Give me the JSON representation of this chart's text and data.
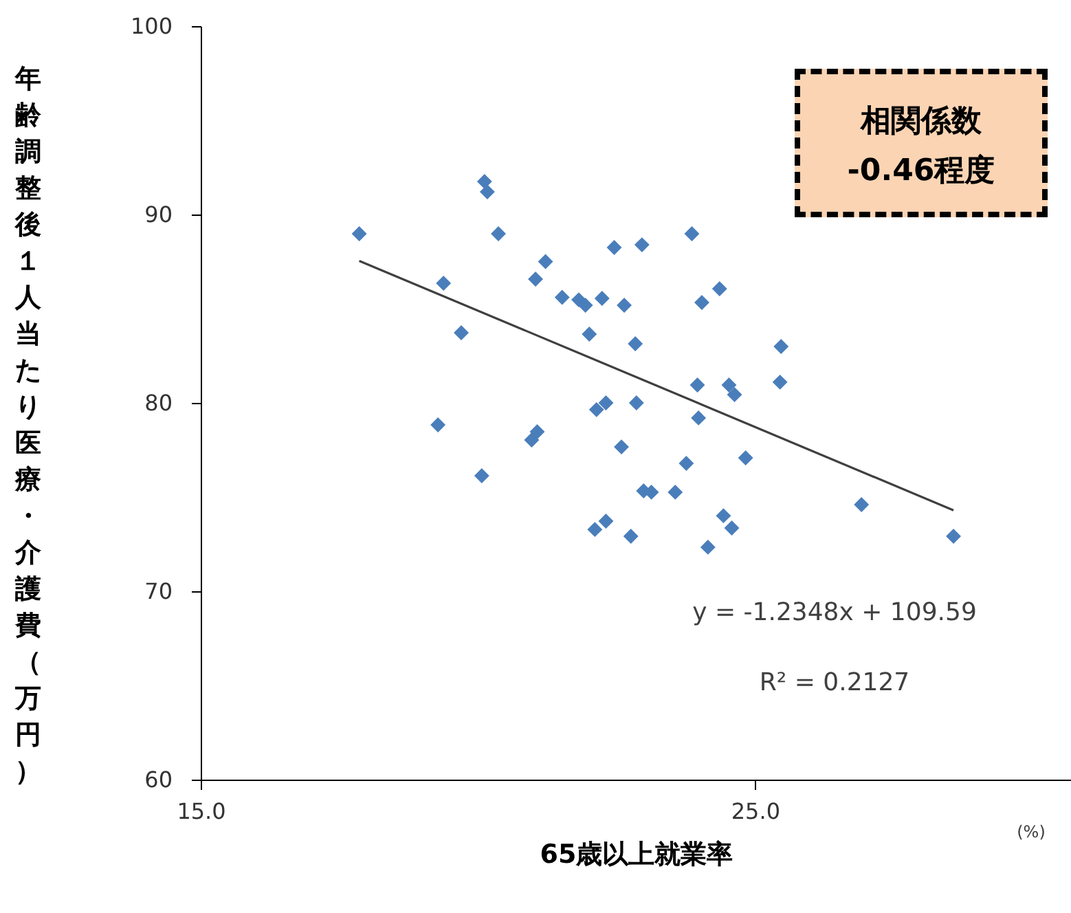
{
  "chart_data": {
    "type": "scatter",
    "xlabel": "65歳以上就業率",
    "ylabel": "年齢調整後１人当たり医療・介護費（万円）",
    "xlim": [
      15,
      30.7
    ],
    "xticks": [
      {
        "value": 15,
        "label": "15.0"
      },
      {
        "value": 25,
        "label": "25.0"
      }
    ],
    "ylim": [
      60,
      100
    ],
    "yticks": [
      60,
      70,
      80,
      90,
      100
    ],
    "annotations": [
      "相関係数\n-0.46程度",
      "y = -1.2348x + 109.59",
      "R² = 0.2127",
      "(%)"
    ],
    "series": [
      {
        "marker": "diamond",
        "color": "#4a7ebb",
        "x": [
          17.86,
          20.12,
          20.17,
          20.37,
          19.38,
          21.22,
          21.04,
          19.7,
          19.28,
          20.07,
          20.97,
          21.07,
          21.52,
          21.82,
          21.94,
          22.24,
          22.01,
          22.46,
          22.96,
          22.64,
          22.84,
          23.86,
          24.04,
          24.36,
          22.14,
          22.31,
          22.86,
          22.59,
          23.96,
          24.53,
          24.63,
          23.98,
          25.47,
          25.45,
          23.76,
          24.83,
          22.99,
          23.13,
          23.56,
          22.11,
          22.31,
          22.76,
          24.43,
          24.58,
          24.15,
          26.92,
          28.58
        ],
        "values": [
          88.98,
          91.75,
          91.2,
          88.98,
          86.35,
          87.5,
          86.57,
          83.72,
          78.83,
          76.13,
          78.03,
          78.47,
          85.6,
          85.47,
          85.18,
          85.55,
          83.65,
          88.25,
          88.39,
          85.18,
          83.14,
          88.98,
          85.33,
          86.06,
          79.64,
          80.0,
          80.0,
          77.66,
          80.95,
          80.95,
          80.44,
          79.2,
          82.99,
          81.1,
          76.79,
          77.08,
          75.33,
          75.26,
          75.26,
          73.28,
          73.72,
          72.92,
          74.01,
          73.36,
          72.34,
          74.6,
          72.92
        ]
      },
      {
        "type": "line",
        "color": "#404040",
        "x": [
          17.86,
          28.58
        ],
        "values": [
          87.54,
          74.3
        ]
      }
    ]
  }
}
